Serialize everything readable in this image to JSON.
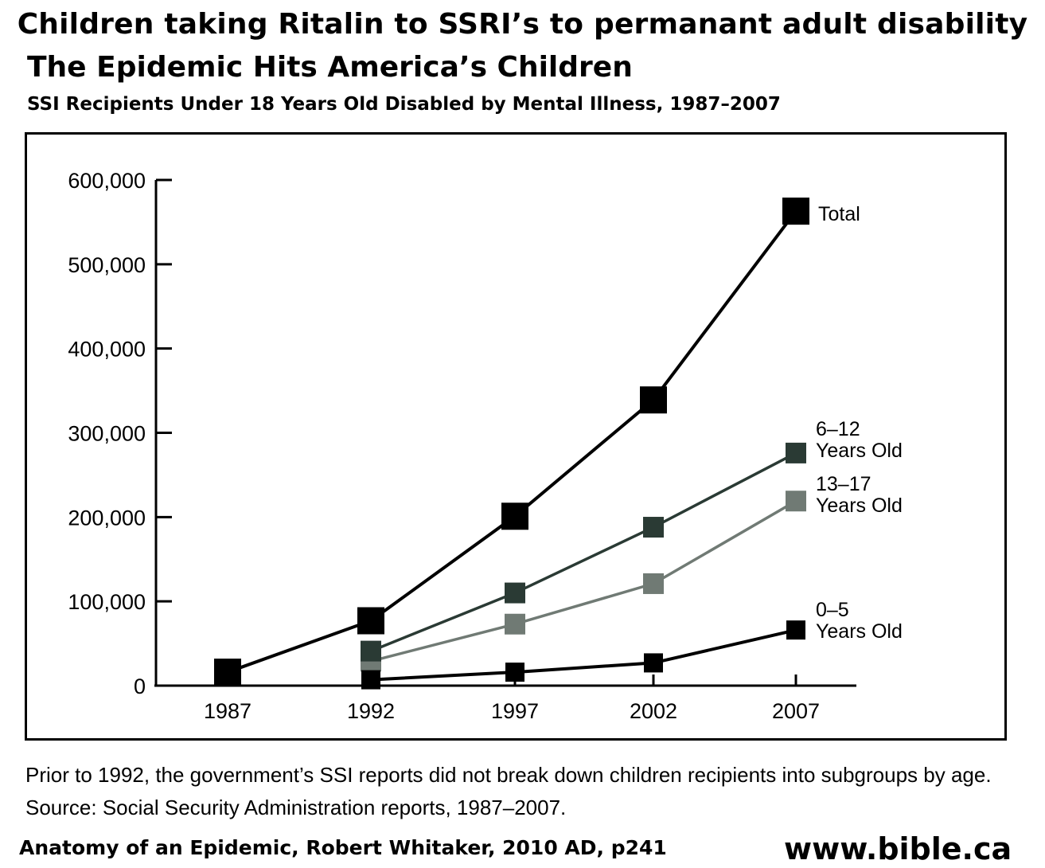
{
  "banner": "Children taking Ritalin to SSRI’s to permanant adult disability",
  "chart_data": {
    "type": "line",
    "title": "The Epidemic Hits America’s Children",
    "subtitle": "SSI Recipients Under 18 Years Old Disabled by Mental Illness, 1987–2007",
    "xlabel": "",
    "ylabel": "",
    "x": [
      "1987",
      "1992",
      "1997",
      "2002",
      "2007"
    ],
    "ylim": [
      0,
      600000
    ],
    "yticks": [
      0,
      100000,
      200000,
      300000,
      400000,
      500000,
      600000
    ],
    "ytick_labels": [
      "0",
      "100,000",
      "200,000",
      "300,000",
      "400,000",
      "500,000",
      "600,000"
    ],
    "grid": false,
    "legend": "none",
    "series": [
      {
        "name": "Total",
        "label_lines": [
          "Total"
        ],
        "values": [
          16000,
          77000,
          201000,
          339000,
          563000
        ],
        "color": "#000000"
      },
      {
        "name": "6–12 Years Old",
        "label_lines": [
          "6–12",
          "Years Old"
        ],
        "values": [
          null,
          41000,
          110000,
          188000,
          276000
        ],
        "color": "#2a3a34"
      },
      {
        "name": "13–17 Years Old",
        "label_lines": [
          "13–17",
          "Years Old"
        ],
        "values": [
          null,
          29000,
          73000,
          121000,
          219000
        ],
        "color": "#707a74"
      },
      {
        "name": "0–5 Years Old",
        "label_lines": [
          "0–5",
          "Years Old"
        ],
        "values": [
          null,
          7000,
          16000,
          27000,
          66000
        ],
        "color": "#000000"
      }
    ]
  },
  "note": "Prior to 1992, the government’s SSI reports did not break down children recipients into subgroups by age. Source: Social Security Administration reports, 1987–2007.",
  "footer": {
    "citation": "Anatomy of an Epidemic, Robert Whitaker, 2010 AD, p241",
    "website": "www.bible.ca"
  }
}
